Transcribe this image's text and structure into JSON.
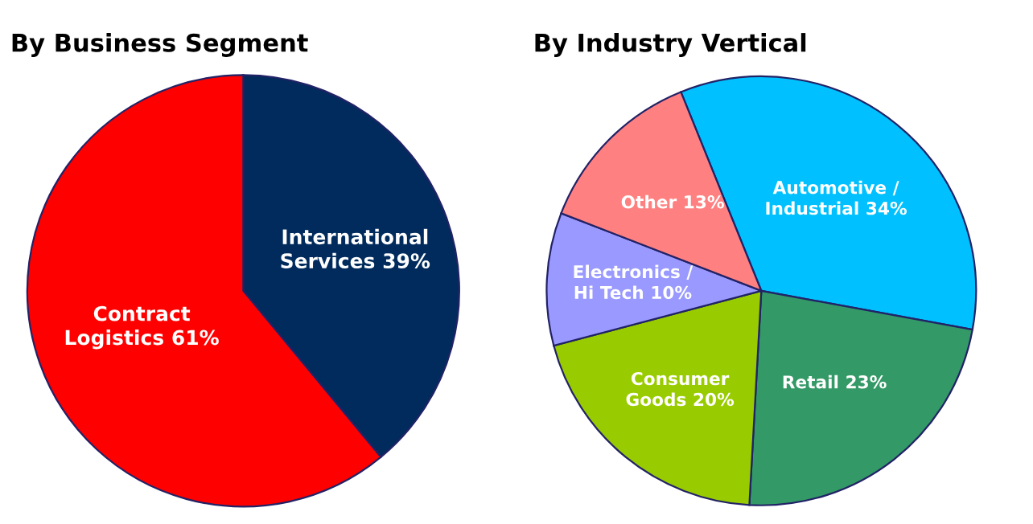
{
  "chart_data": [
    {
      "type": "pie",
      "title": "By Business Segment",
      "categories": [
        "International\nServices",
        "Contract\nLogistics"
      ],
      "values": [
        39,
        61
      ],
      "value_labels": [
        "39%",
        "61%"
      ],
      "colors": [
        "#002b5c",
        "#ff0000"
      ]
    },
    {
      "type": "pie",
      "title": "By Industry Vertical",
      "categories": [
        "Automotive /\nIndustrial",
        "Retail",
        "Consumer\nGoods",
        "Electronics /\nHi Tech",
        "Other"
      ],
      "values": [
        34,
        23,
        20,
        10,
        13
      ],
      "value_labels": [
        "34%",
        "23%",
        "20%",
        "10%",
        "13%"
      ],
      "colors": [
        "#00c0ff",
        "#339966",
        "#99cc00",
        "#9999ff",
        "#ff8080"
      ]
    }
  ]
}
